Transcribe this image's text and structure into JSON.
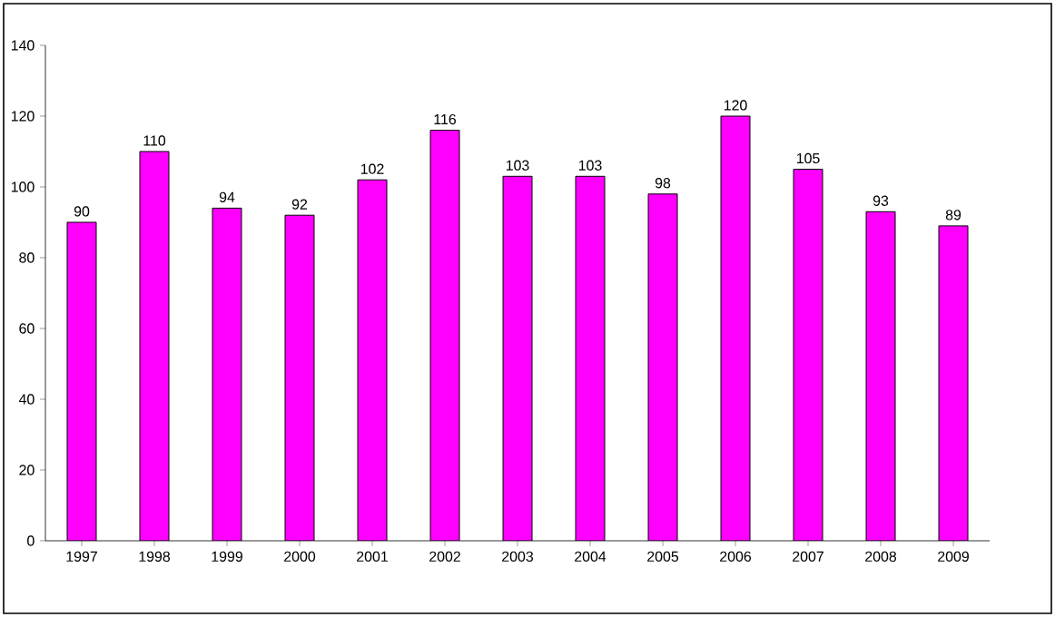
{
  "chart_data": {
    "type": "bar",
    "categories": [
      "1997",
      "1998",
      "1999",
      "2000",
      "2001",
      "2002",
      "2003",
      "2004",
      "2005",
      "2006",
      "2007",
      "2008",
      "2009"
    ],
    "values": [
      90,
      110,
      94,
      92,
      102,
      116,
      103,
      103,
      98,
      120,
      105,
      93,
      89
    ],
    "color": "#ff00ff",
    "ylim": [
      0,
      140
    ],
    "yticks": [
      0,
      20,
      40,
      60,
      80,
      100,
      120,
      140
    ],
    "data_labels": true,
    "grid": false
  }
}
